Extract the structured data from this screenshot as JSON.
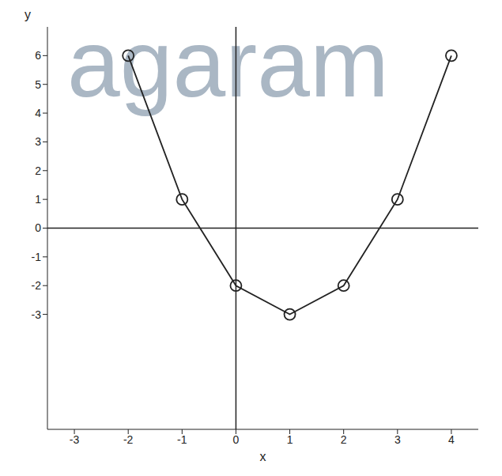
{
  "chart_data": {
    "type": "line",
    "x_label": "x",
    "y_label": "y",
    "annotations": [
      "agaram"
    ],
    "x": [
      -2,
      -1,
      0,
      1,
      2,
      3,
      4
    ],
    "values": [
      6,
      1,
      -2,
      -3,
      -2,
      1,
      6
    ],
    "color": "#222222",
    "marker": "circle",
    "xlim": [
      -3.5,
      4.5
    ],
    "xticks": [
      -3,
      -2,
      -1,
      0,
      1,
      2,
      3,
      4
    ],
    "ylim": [
      -7,
      7
    ],
    "yticks": [
      -3,
      -2,
      -1,
      0,
      1,
      2,
      3,
      4,
      5,
      6
    ],
    "grid": false
  }
}
